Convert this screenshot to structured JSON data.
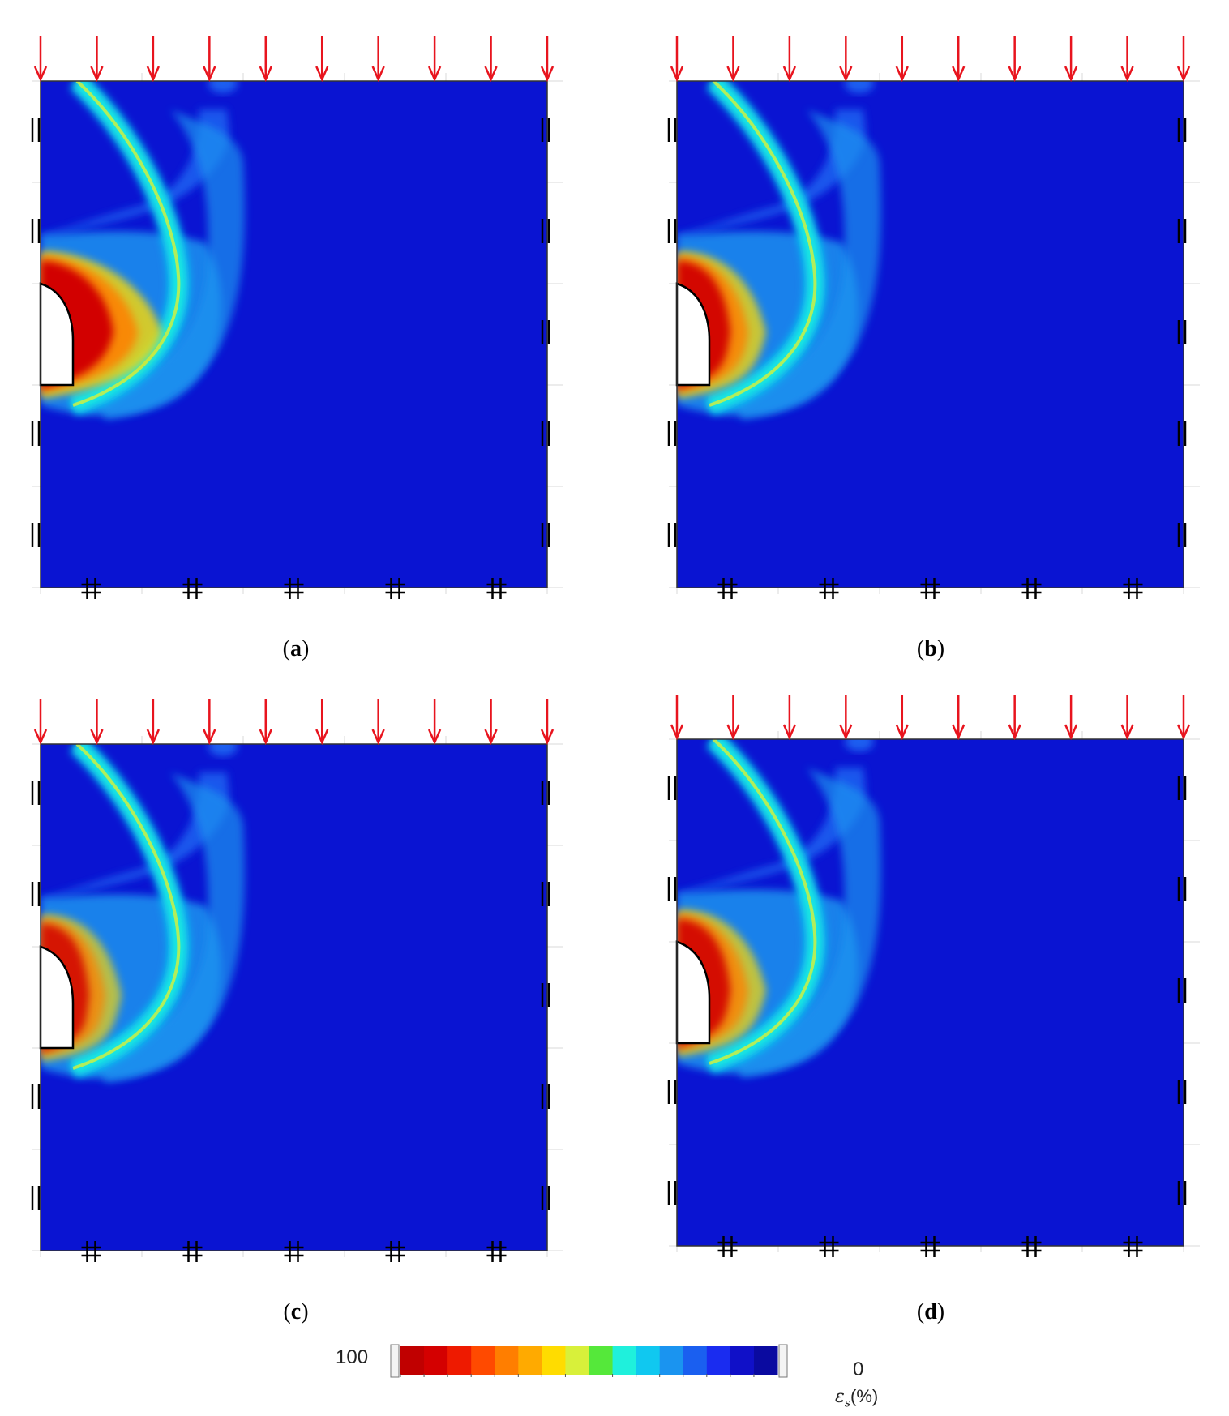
{
  "panels": [
    {
      "id": "a",
      "label": "a",
      "variant": 0
    },
    {
      "id": "b",
      "label": "b",
      "variant": 1
    },
    {
      "id": "c",
      "label": "c",
      "variant": 2
    },
    {
      "id": "d",
      "label": "d",
      "variant": 3
    }
  ],
  "colorbar": {
    "max_label": "100",
    "min_label": "0",
    "symbol": "ε",
    "subscript": "s",
    "unit": "(%)",
    "colors": [
      "#c00000",
      "#d40000",
      "#ee1a00",
      "#ff4a00",
      "#ff7e00",
      "#ffaa00",
      "#ffdc00",
      "#d8f03a",
      "#55e83a",
      "#1ff0dc",
      "#10c8f0",
      "#1a94f0",
      "#1a5ff0",
      "#1a2cf0",
      "#1010c8",
      "#0a0aa0"
    ]
  },
  "colors": {
    "background_field": "#0a14d2",
    "load_arrow": "#e8141e",
    "high_strain": "#d20000"
  }
}
